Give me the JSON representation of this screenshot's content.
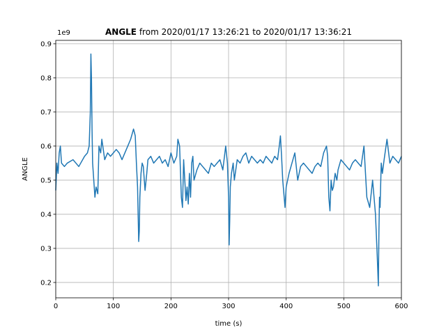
{
  "chart_data": {
    "type": "line",
    "title_bold": "ANGLE",
    "title_rest": " from 2020/01/17 13:26:21 to 2020/01/17 13:36:21",
    "xlabel": "time (s)",
    "ylabel": "ANGLE",
    "y_offset_text": "1e9",
    "xlim": [
      0,
      600
    ],
    "ylim": [
      0.155,
      0.91
    ],
    "xticks": [
      0,
      100,
      200,
      300,
      400,
      500,
      600
    ],
    "xtick_labels": [
      "0",
      "100",
      "200",
      "300",
      "400",
      "500",
      "600"
    ],
    "yticks": [
      0.2,
      0.3,
      0.4,
      0.5,
      0.6,
      0.7,
      0.8,
      0.9
    ],
    "ytick_labels": [
      "0.2",
      "0.3",
      "0.4",
      "0.5",
      "0.6",
      "0.7",
      "0.8",
      "0.9"
    ],
    "grid": true,
    "series": [
      {
        "color": "#1f77b4",
        "x": [
          0,
          2,
          4,
          6,
          8,
          10,
          15,
          20,
          30,
          40,
          50,
          55,
          58,
          60,
          61,
          62,
          63,
          64,
          66,
          68,
          70,
          73,
          75,
          78,
          80,
          85,
          90,
          95,
          100,
          105,
          110,
          115,
          120,
          125,
          130,
          135,
          138,
          140,
          142,
          144,
          145,
          146,
          148,
          150,
          152,
          155,
          158,
          160,
          165,
          170,
          175,
          180,
          185,
          190,
          195,
          200,
          205,
          210,
          212,
          215,
          218,
          220,
          222,
          224,
          226,
          228,
          230,
          232,
          234,
          236,
          238,
          240,
          245,
          250,
          255,
          260,
          265,
          270,
          275,
          280,
          285,
          290,
          295,
          298,
          300,
          301,
          302,
          303,
          305,
          308,
          310,
          315,
          320,
          325,
          330,
          335,
          340,
          345,
          350,
          355,
          360,
          365,
          370,
          375,
          380,
          385,
          388,
          390,
          392,
          394,
          396,
          398,
          400,
          405,
          410,
          415,
          420,
          425,
          430,
          435,
          440,
          445,
          450,
          455,
          460,
          465,
          470,
          472,
          474,
          476,
          478,
          480,
          482,
          485,
          488,
          490,
          495,
          500,
          505,
          510,
          515,
          520,
          525,
          530,
          535,
          540,
          545,
          550,
          555,
          558,
          560,
          561,
          562,
          563,
          565,
          567,
          570,
          575,
          580,
          585,
          590,
          595,
          600
        ],
        "y": [
          0.47,
          0.55,
          0.52,
          0.58,
          0.6,
          0.55,
          0.54,
          0.55,
          0.56,
          0.54,
          0.57,
          0.58,
          0.6,
          0.7,
          0.87,
          0.8,
          0.65,
          0.55,
          0.5,
          0.45,
          0.48,
          0.46,
          0.6,
          0.58,
          0.62,
          0.56,
          0.58,
          0.57,
          0.58,
          0.59,
          0.58,
          0.56,
          0.58,
          0.6,
          0.62,
          0.65,
          0.63,
          0.55,
          0.48,
          0.32,
          0.35,
          0.45,
          0.52,
          0.55,
          0.54,
          0.47,
          0.52,
          0.56,
          0.57,
          0.55,
          0.56,
          0.57,
          0.55,
          0.56,
          0.54,
          0.58,
          0.55,
          0.57,
          0.62,
          0.6,
          0.45,
          0.42,
          0.56,
          0.5,
          0.44,
          0.48,
          0.43,
          0.52,
          0.45,
          0.55,
          0.57,
          0.5,
          0.53,
          0.55,
          0.54,
          0.53,
          0.52,
          0.55,
          0.54,
          0.55,
          0.56,
          0.53,
          0.6,
          0.55,
          0.45,
          0.31,
          0.38,
          0.48,
          0.52,
          0.55,
          0.5,
          0.56,
          0.55,
          0.57,
          0.58,
          0.55,
          0.57,
          0.56,
          0.55,
          0.56,
          0.55,
          0.57,
          0.56,
          0.55,
          0.57,
          0.56,
          0.6,
          0.63,
          0.57,
          0.5,
          0.46,
          0.42,
          0.48,
          0.52,
          0.55,
          0.58,
          0.5,
          0.54,
          0.55,
          0.54,
          0.53,
          0.52,
          0.54,
          0.55,
          0.54,
          0.58,
          0.6,
          0.57,
          0.45,
          0.41,
          0.5,
          0.47,
          0.48,
          0.52,
          0.5,
          0.53,
          0.56,
          0.55,
          0.54,
          0.53,
          0.55,
          0.56,
          0.55,
          0.54,
          0.6,
          0.45,
          0.42,
          0.5,
          0.4,
          0.28,
          0.19,
          0.35,
          0.45,
          0.42,
          0.55,
          0.52,
          0.56,
          0.62,
          0.55,
          0.57,
          0.56,
          0.55,
          0.57
        ]
      }
    ]
  }
}
